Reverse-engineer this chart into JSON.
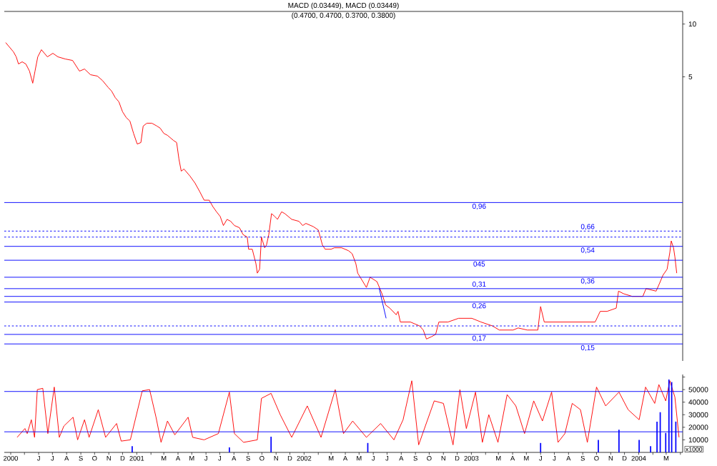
{
  "chart_data": [
    {
      "type": "line",
      "title": "(0.4700, 0.4700, 0.3700, 0.3800)",
      "annotations": [
        "MACD (0.03449), MACD (0.03449)"
      ],
      "xlim": [
        "2000-03-18",
        "2004-04-06"
      ],
      "ylim": [
        0.12,
        11.8
      ],
      "yticks": [
        5,
        10
      ],
      "log": true,
      "tick_labels": "y",
      "series": [
        {
          "color": "#ff0000",
          "x": [
            "2000-03-21",
            "2000-04-07",
            "2000-04-13",
            "2000-04-18",
            "2000-04-26",
            "2000-05-04",
            "2000-05-12",
            "2000-05-19",
            "2000-05-24",
            "2000-05-30",
            "2000-06-07",
            "2000-06-20",
            "2000-07-02",
            "2000-07-13",
            "2000-07-29",
            "2000-08-14",
            "2000-08-29",
            "2000-09-09",
            "2000-09-22",
            "2000-10-07",
            "2000-10-18",
            "2000-10-31",
            "2000-11-07",
            "2000-11-15",
            "2000-11-23",
            "2000-12-01",
            "2000-12-09",
            "2000-12-17",
            "2000-12-25",
            "2001-01-02",
            "2001-01-10",
            "2001-01-15",
            "2001-01-23",
            "2001-02-03",
            "2001-02-14",
            "2001-02-21",
            "2001-03-01",
            "2001-03-09",
            "2001-03-22",
            "2001-03-29",
            "2001-04-03",
            "2001-04-08",
            "2001-04-14",
            "2001-04-27",
            "2001-05-08",
            "2001-05-19",
            "2001-05-28",
            "2001-06-08",
            "2001-06-16",
            "2001-06-24",
            "2001-07-02",
            "2001-07-09",
            "2001-07-17",
            "2001-07-25",
            "2001-08-02",
            "2001-08-13",
            "2001-08-21",
            "2001-08-30",
            "2001-09-02",
            "2001-09-10",
            "2001-09-18",
            "2001-09-21",
            "2001-09-26",
            "2001-09-30",
            "2001-10-07",
            "2001-10-11",
            "2001-10-16",
            "2001-10-22",
            "2001-10-29",
            "2001-11-04",
            "2001-11-13",
            "2001-11-20",
            "2001-12-05",
            "2001-12-21",
            "2001-12-29",
            "2002-01-05",
            "2002-01-21",
            "2002-02-01",
            "2002-02-10",
            "2002-02-16",
            "2002-03-01",
            "2002-03-08",
            "2002-03-24",
            "2002-04-08",
            "2002-04-16",
            "2002-04-24",
            "2002-04-28",
            "2002-05-17",
            "2002-05-25",
            "2002-06-09",
            "2002-06-20",
            "2002-06-28",
            "2002-07-07",
            "2002-07-21",
            "2002-07-25",
            "2002-07-30",
            "2002-08-21",
            "2002-09-10",
            "2002-09-18",
            "2002-09-25",
            "2002-10-06",
            "2002-10-15",
            "2002-10-22",
            "2002-11-11",
            "2002-12-04",
            "2003-01-02",
            "2003-01-22",
            "2003-02-16",
            "2003-03-03",
            "2003-04-02",
            "2003-04-13",
            "2003-05-03",
            "2003-05-26",
            "2003-06-01",
            "2003-06-09",
            "2003-06-18",
            "2003-07-14",
            "2003-08-09",
            "2003-09-02",
            "2003-09-28",
            "2003-10-09",
            "2003-10-24",
            "2003-11-13",
            "2003-11-18",
            "2003-11-29",
            "2003-12-18",
            "2004-01-10",
            "2004-01-17",
            "2004-02-08",
            "2004-02-15",
            "2004-02-23",
            "2004-03-03",
            "2004-03-09",
            "2004-03-12",
            "2004-03-17",
            "2004-03-20",
            "2004-03-24"
          ],
          "values": [
            7.84,
            6.94,
            6.5,
            5.92,
            6.09,
            5.92,
            5.39,
            4.6,
            5.39,
            6.5,
            7.14,
            6.5,
            6.81,
            6.5,
            6.32,
            6.2,
            5.39,
            5.54,
            5.14,
            5.05,
            4.77,
            4.34,
            4.15,
            3.81,
            3.6,
            3.16,
            2.93,
            2.8,
            2.38,
            2.07,
            2.11,
            2.62,
            2.72,
            2.72,
            2.62,
            2.55,
            2.38,
            2.32,
            2.17,
            2.11,
            1.7,
            1.45,
            1.49,
            1.36,
            1.24,
            1.1,
            0.99,
            0.99,
            0.91,
            0.85,
            0.8,
            0.71,
            0.77,
            0.75,
            0.71,
            0.69,
            0.63,
            0.61,
            0.52,
            0.52,
            0.43,
            0.38,
            0.4,
            0.61,
            0.53,
            0.55,
            0.63,
            0.83,
            0.8,
            0.77,
            0.85,
            0.83,
            0.77,
            0.75,
            0.71,
            0.73,
            0.7,
            0.67,
            0.55,
            0.52,
            0.52,
            0.53,
            0.53,
            0.51,
            0.49,
            0.43,
            0.38,
            0.315,
            0.36,
            0.34,
            0.29,
            0.25,
            0.24,
            0.22,
            0.23,
            0.2,
            0.2,
            0.19,
            0.18,
            0.16,
            0.165,
            0.17,
            0.2,
            0.2,
            0.21,
            0.21,
            0.2,
            0.19,
            0.18,
            0.18,
            0.185,
            0.18,
            0.18,
            0.245,
            0.2,
            0.2,
            0.2,
            0.2,
            0.2,
            0.2,
            0.23,
            0.23,
            0.24,
            0.3,
            0.29,
            0.28,
            0.28,
            0.31,
            0.3,
            0.33,
            0.37,
            0.4,
            0.5,
            0.58,
            0.53,
            0.47,
            0.38
          ]
        },
        {
          "type": "line",
          "color": "#0000ff",
          "x": [
            "2002-06-14",
            "2002-06-29"
          ],
          "values": [
            0.31,
            0.21
          ]
        }
      ],
      "ref_lines": [
        {
          "axis": "y",
          "value": 0.96,
          "label": "0,96",
          "color": "#0000ff"
        },
        {
          "axis": "y",
          "value": 0.66,
          "label": "0,66",
          "color": "#0000ff",
          "line_style": "dashed"
        },
        {
          "axis": "y",
          "value": 0.61,
          "color": "#0000ff",
          "line_style": "dashed"
        },
        {
          "axis": "y",
          "value": 0.54,
          "label": "0,54",
          "color": "#0000ff"
        },
        {
          "axis": "y",
          "value": 0.45,
          "label": "045",
          "color": "#0000ff"
        },
        {
          "axis": "y",
          "value": 0.36,
          "label": "0,36",
          "color": "#0000ff"
        },
        {
          "axis": "y",
          "value": 0.31,
          "label": "0,31",
          "color": "#0000ff"
        },
        {
          "axis": "y",
          "value": 0.28,
          "color": "#0000ff"
        },
        {
          "axis": "y",
          "value": 0.26,
          "label": "0,26",
          "color": "#0000ff"
        },
        {
          "axis": "y",
          "value": 0.19,
          "color": "#0000ff",
          "line_style": "dashed"
        },
        {
          "axis": "y",
          "value": 0.17,
          "label": "0,17",
          "color": "#0000ff"
        },
        {
          "axis": "y",
          "value": 0.15,
          "label": "0,15",
          "color": "#0000ff"
        }
      ]
    },
    {
      "type": "line",
      "ylabel": "x1000",
      "xlim": [
        "2000-03-18",
        "2004-04-06"
      ],
      "ylim": [
        0,
        62000
      ],
      "yticks": [
        10000,
        20000,
        30000,
        40000,
        50000,
        {
          "value": 60000,
          "label": null
        }
      ],
      "xticks": [
        {
          "value": "2000-04-01",
          "label": "2000"
        },
        {
          "value": "2000-05-01",
          "label": null
        },
        {
          "value": "2000-06-01",
          "label": "J"
        },
        {
          "value": "2000-07-01",
          "label": "J"
        },
        {
          "value": "2000-08-01",
          "label": "A"
        },
        {
          "value": "2000-09-01",
          "label": "S"
        },
        {
          "value": "2000-10-01",
          "label": "O"
        },
        {
          "value": "2000-11-01",
          "label": "N"
        },
        {
          "value": "2000-12-01",
          "label": "D"
        },
        {
          "value": "2001-01-01",
          "label": "2001"
        },
        {
          "value": "2001-02-01",
          "label": null
        },
        {
          "value": "2001-03-01",
          "label": "M"
        },
        {
          "value": "2001-04-01",
          "label": "A"
        },
        {
          "value": "2001-05-01",
          "label": "M"
        },
        {
          "value": "2001-06-01",
          "label": "J"
        },
        {
          "value": "2001-07-01",
          "label": "J"
        },
        {
          "value": "2001-08-01",
          "label": "A"
        },
        {
          "value": "2001-09-01",
          "label": "S"
        },
        {
          "value": "2001-10-01",
          "label": "O"
        },
        {
          "value": "2001-11-01",
          "label": "N"
        },
        {
          "value": "2001-12-01",
          "label": "D"
        },
        {
          "value": "2002-01-01",
          "label": "2002"
        },
        {
          "value": "2002-02-01",
          "label": null
        },
        {
          "value": "2002-03-01",
          "label": "M"
        },
        {
          "value": "2002-04-01",
          "label": "A"
        },
        {
          "value": "2002-05-01",
          "label": "M"
        },
        {
          "value": "2002-06-01",
          "label": "J"
        },
        {
          "value": "2002-07-01",
          "label": "J"
        },
        {
          "value": "2002-08-01",
          "label": "A"
        },
        {
          "value": "2002-09-01",
          "label": "S"
        },
        {
          "value": "2002-10-01",
          "label": "O"
        },
        {
          "value": "2002-11-01",
          "label": "N"
        },
        {
          "value": "2002-12-01",
          "label": "D"
        },
        {
          "value": "2003-01-01",
          "label": "2003"
        },
        {
          "value": "2003-02-01",
          "label": null
        },
        {
          "value": "2003-03-01",
          "label": "M"
        },
        {
          "value": "2003-04-01",
          "label": "A"
        },
        {
          "value": "2003-05-01",
          "label": "M"
        },
        {
          "value": "2003-06-01",
          "label": "J"
        },
        {
          "value": "2003-07-01",
          "label": "J"
        },
        {
          "value": "2003-08-01",
          "label": "A"
        },
        {
          "value": "2003-09-01",
          "label": "S"
        },
        {
          "value": "2003-10-01",
          "label": "O"
        },
        {
          "value": "2003-11-01",
          "label": "N"
        },
        {
          "value": "2003-12-01",
          "label": "D"
        },
        {
          "value": "2004-01-01",
          "label": "2004"
        },
        {
          "value": "2004-02-01",
          "label": null
        },
        {
          "value": "2004-03-01",
          "label": "M"
        },
        {
          "value": "2004-04-01",
          "label": null
        }
      ],
      "series": [
        {
          "type": "line",
          "color": "#ff0000",
          "x": [
            "2000-04-15",
            "2000-05-02",
            "2000-05-07",
            "2000-05-16",
            "2000-05-23",
            "2000-05-29",
            "2000-06-10",
            "2000-06-21",
            "2000-07-05",
            "2000-07-16",
            "2000-07-26",
            "2000-08-15",
            "2000-08-25",
            "2000-09-09",
            "2000-09-19",
            "2000-10-09",
            "2000-10-25",
            "2000-11-18",
            "2000-11-28",
            "2000-12-18",
            "2001-01-13",
            "2001-01-29",
            "2001-02-12",
            "2001-02-23",
            "2001-03-09",
            "2001-03-25",
            "2001-04-23",
            "2001-05-03",
            "2001-05-28",
            "2001-06-28",
            "2001-07-22",
            "2001-08-02",
            "2001-08-22",
            "2001-09-21",
            "2001-09-30",
            "2001-10-21",
            "2001-11-10",
            "2001-12-05",
            "2002-01-08",
            "2002-02-07",
            "2002-03-10",
            "2002-03-28",
            "2002-04-17",
            "2002-05-17",
            "2002-06-17",
            "2002-07-16",
            "2002-08-05",
            "2002-08-24",
            "2002-09-08",
            "2002-10-12",
            "2002-11-01",
            "2002-11-22",
            "2002-12-07",
            "2002-12-21",
            "2003-01-10",
            "2003-01-25",
            "2003-02-08",
            "2003-02-28",
            "2003-03-20",
            "2003-04-08",
            "2003-04-27",
            "2003-05-17",
            "2003-06-05",
            "2003-06-25",
            "2003-07-09",
            "2003-07-24",
            "2003-08-09",
            "2003-08-27",
            "2003-09-11",
            "2003-10-01",
            "2003-10-21",
            "2003-11-19",
            "2003-12-09",
            "2004-01-02",
            "2004-01-16",
            "2004-02-05",
            "2004-02-14",
            "2004-02-29",
            "2004-03-09",
            "2004-03-20",
            "2004-03-29"
          ],
          "values": [
            12000,
            19000,
            15000,
            26000,
            12000,
            50000,
            51000,
            15000,
            52000,
            12000,
            21000,
            28000,
            10000,
            26000,
            12000,
            34000,
            12000,
            23000,
            9000,
            10000,
            49000,
            50000,
            28000,
            8000,
            25000,
            14000,
            28000,
            12000,
            10000,
            15000,
            48000,
            15000,
            8000,
            10000,
            43000,
            47000,
            30000,
            12000,
            37000,
            12000,
            50000,
            15000,
            25000,
            12000,
            23000,
            10000,
            26000,
            57000,
            6000,
            41000,
            39000,
            6000,
            50000,
            19000,
            48000,
            8000,
            30000,
            8000,
            46000,
            37000,
            15000,
            41000,
            25000,
            48000,
            8000,
            15000,
            39000,
            34000,
            8000,
            52000,
            37000,
            48000,
            34000,
            26000,
            52000,
            39000,
            54000,
            41000,
            57000,
            44000,
            12000
          ]
        },
        {
          "type": "bar",
          "color": "#0000ff",
          "x": [
            "2000-12-22",
            "2001-07-22",
            "2001-10-21",
            "2002-05-20",
            "2003-06-01",
            "2003-10-05",
            "2003-11-19",
            "2004-01-02",
            "2004-01-27",
            "2004-02-10",
            "2004-02-17",
            "2004-02-29",
            "2004-03-07",
            "2004-03-13",
            "2004-03-22"
          ],
          "values": [
            5000,
            4000,
            12500,
            7500,
            7500,
            10000,
            18000,
            10000,
            5000,
            24500,
            32000,
            15500,
            58000,
            56000,
            24500
          ]
        }
      ],
      "ref_lines": [
        {
          "axis": "y",
          "value": 48500,
          "color": "#0000ff"
        },
        {
          "axis": "y",
          "value": 16400,
          "color": "#0000ff"
        }
      ]
    }
  ]
}
